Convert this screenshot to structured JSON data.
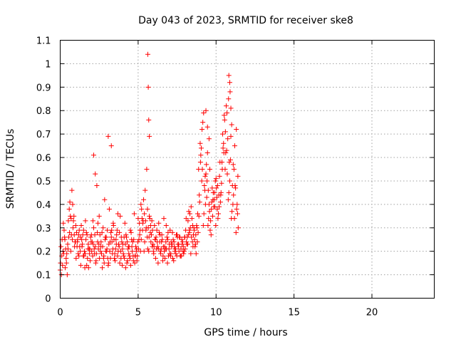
{
  "chart_data": {
    "type": "scatter",
    "title": "Day 043 of 2023, SRMTID for receiver ske8",
    "xlabel": "GPS time / hours",
    "ylabel": "SRMTID / TECUs",
    "xlim": [
      0,
      24
    ],
    "ylim": [
      0,
      1.1
    ],
    "xticks": [
      0,
      5,
      10,
      15,
      20
    ],
    "xtick_labels": [
      "0",
      "5",
      "10",
      "15",
      "20"
    ],
    "yticks": [
      0,
      0.1,
      0.2,
      0.3,
      0.4,
      0.5,
      0.6,
      0.7,
      0.8,
      0.9,
      1,
      1.1
    ],
    "ytick_labels": [
      "0",
      "0.1",
      "0.2",
      "0.3",
      "0.4",
      "0.5",
      "0.6",
      "0.7",
      "0.8",
      "0.9",
      "1",
      "1.1"
    ],
    "grid": true,
    "marker": "+",
    "color": "#ff0000",
    "series": [
      {
        "name": "SRMTID",
        "x": [
          0.0,
          0.1,
          0.2,
          0.3,
          0.4,
          0.5,
          0.6,
          0.7,
          0.8,
          0.9,
          1.0,
          1.1,
          1.2,
          1.3,
          1.4,
          1.5,
          1.6,
          1.7,
          1.8,
          1.9,
          2.0,
          2.1,
          2.2,
          2.3,
          2.4,
          2.5,
          2.6,
          2.7,
          2.8,
          2.9,
          3.0,
          3.1,
          3.2,
          3.3,
          3.4,
          3.5,
          3.6,
          3.7,
          3.8,
          3.9,
          4.0,
          4.1,
          4.2,
          4.3,
          4.4,
          4.5,
          4.6,
          4.7,
          4.8,
          4.9,
          5.0,
          5.1,
          5.2,
          5.3,
          5.4,
          5.5,
          5.6,
          5.7,
          5.8,
          5.9,
          6.0,
          6.1,
          6.2,
          6.3,
          6.4,
          6.5,
          6.6,
          6.7,
          6.8,
          6.9,
          7.0,
          7.1,
          7.2,
          7.3,
          7.4,
          7.5,
          7.6,
          7.7,
          7.8,
          7.9,
          8.0,
          8.1,
          8.2,
          8.3,
          8.4,
          8.5,
          8.6,
          8.7,
          8.8,
          8.9,
          9.0,
          9.1,
          9.2,
          9.3,
          9.4,
          9.5,
          9.6,
          9.7,
          9.8,
          9.9,
          10.0,
          10.1,
          10.2,
          10.3,
          10.4,
          10.5,
          10.6,
          10.7,
          10.8,
          10.9,
          11.0,
          11.1,
          11.2,
          11.3,
          11.4,
          0.05,
          0.15,
          0.25,
          0.35,
          0.45,
          0.55,
          0.65,
          0.75,
          0.85,
          0.95,
          1.05,
          1.15,
          1.25,
          1.35,
          1.45,
          1.55,
          1.65,
          1.75,
          1.85,
          1.95,
          2.05,
          2.15,
          2.25,
          2.35,
          2.45,
          2.55,
          2.65,
          2.75,
          2.85,
          2.95,
          3.05,
          3.15,
          3.25,
          3.35,
          3.45,
          3.55,
          3.65,
          3.75,
          3.85,
          3.95,
          4.05,
          4.15,
          4.25,
          4.35,
          4.45,
          4.55,
          4.65,
          4.75,
          4.85,
          4.95,
          5.05,
          5.15,
          5.25,
          5.35,
          5.45,
          5.55,
          5.65,
          5.75,
          5.85,
          5.95,
          6.05,
          6.15,
          6.25,
          6.35,
          6.45,
          6.55,
          6.65,
          6.75,
          6.85,
          6.95,
          7.05,
          7.15,
          7.25,
          7.35,
          7.45,
          7.55,
          7.65,
          7.75,
          7.85,
          7.95,
          8.05,
          8.15,
          8.25,
          8.35,
          8.45,
          8.55,
          8.65,
          8.75,
          8.85,
          8.95,
          9.05,
          9.15,
          9.25,
          9.35,
          9.45,
          9.55,
          9.65,
          9.75,
          9.85,
          9.95,
          10.05,
          10.15,
          10.25,
          10.35,
          10.45,
          10.55,
          10.65,
          10.75,
          10.85,
          10.95,
          11.05,
          11.15,
          11.25,
          11.35,
          0.02,
          0.12,
          0.22,
          0.32,
          0.42,
          0.52,
          0.62,
          0.72,
          0.82,
          0.92,
          1.02,
          1.12,
          1.22,
          1.32,
          1.42,
          1.52,
          1.62,
          1.72,
          1.82,
          1.92,
          2.02,
          2.12,
          2.22,
          2.32,
          2.42,
          2.52,
          2.62,
          2.72,
          2.82,
          2.92,
          3.02,
          3.12,
          3.22,
          3.32,
          3.42,
          3.52,
          3.62,
          3.72,
          3.82,
          3.92,
          4.02,
          4.12,
          4.22,
          4.32,
          4.42,
          4.52,
          4.62,
          4.72,
          4.82,
          4.92,
          5.02,
          5.12,
          5.22,
          5.32,
          5.42,
          5.52,
          5.62,
          5.72,
          5.82,
          5.92,
          6.02,
          6.12,
          6.22,
          6.32,
          6.42,
          6.52,
          6.62,
          6.72,
          6.82,
          6.92,
          7.02,
          7.12,
          7.22,
          7.32,
          7.42,
          7.52,
          7.62,
          7.72,
          7.82,
          7.92,
          8.02,
          8.12,
          8.22,
          8.32,
          8.42,
          8.52,
          8.62,
          8.72,
          8.82,
          8.92,
          9.02,
          9.12,
          9.22,
          9.32,
          9.42,
          9.52,
          9.62,
          9.72,
          9.82,
          9.92,
          10.02,
          10.12,
          10.22,
          10.32,
          10.42,
          10.52,
          10.62,
          10.72,
          10.82,
          10.92,
          11.02,
          11.12,
          11.22,
          11.32,
          11.42,
          0.08,
          0.18,
          0.28,
          0.38,
          0.48,
          0.58,
          0.68,
          0.78,
          0.88,
          0.98,
          1.08,
          1.18,
          1.28,
          1.38,
          1.48,
          1.58,
          1.68,
          1.78,
          1.88,
          1.98,
          2.08,
          2.18,
          2.28,
          2.38,
          2.48,
          2.58,
          2.68,
          2.78,
          2.88,
          2.98,
          3.08,
          3.18,
          3.28,
          3.38,
          3.48,
          3.58,
          3.68,
          3.78,
          3.88,
          3.98,
          4.08,
          4.18,
          4.28,
          4.38,
          4.48,
          4.58,
          4.68,
          4.78,
          4.88,
          4.98,
          5.08,
          5.18,
          5.28,
          5.38,
          5.48,
          5.58,
          5.68,
          5.78,
          5.88,
          5.98,
          6.08,
          6.18,
          6.28,
          6.38,
          6.48,
          6.58,
          6.68,
          6.78,
          6.88,
          6.98,
          7.08,
          7.18,
          7.28,
          7.38,
          7.48,
          7.58,
          7.68,
          7.78,
          7.88,
          7.98,
          8.08,
          8.18,
          8.28,
          8.38,
          8.48,
          8.58,
          8.68,
          8.78,
          8.88,
          8.98,
          9.08,
          9.18,
          9.28,
          9.38,
          9.48,
          9.58,
          9.68,
          9.78,
          9.88,
          9.98,
          10.08,
          10.18,
          10.28,
          10.38,
          10.48,
          10.58,
          10.68,
          10.78,
          10.88,
          10.98,
          11.08,
          11.18,
          11.28,
          11.38,
          5.62,
          5.65,
          5.68,
          5.72,
          2.15,
          2.25,
          3.08,
          3.28,
          10.82,
          10.88,
          10.95,
          9.35,
          9.45,
          9.55
        ],
        "y": [
          0.12,
          0.18,
          0.32,
          0.25,
          0.15,
          0.21,
          0.28,
          0.34,
          0.4,
          0.27,
          0.31,
          0.24,
          0.18,
          0.26,
          0.22,
          0.29,
          0.19,
          0.14,
          0.23,
          0.21,
          0.27,
          0.33,
          0.19,
          0.16,
          0.24,
          0.35,
          0.22,
          0.13,
          0.18,
          0.26,
          0.21,
          0.15,
          0.24,
          0.29,
          0.32,
          0.19,
          0.23,
          0.36,
          0.28,
          0.17,
          0.21,
          0.26,
          0.13,
          0.24,
          0.19,
          0.29,
          0.22,
          0.16,
          0.18,
          0.21,
          0.34,
          0.27,
          0.25,
          0.32,
          0.36,
          0.29,
          0.38,
          0.26,
          0.31,
          0.22,
          0.19,
          0.25,
          0.29,
          0.21,
          0.27,
          0.24,
          0.18,
          0.22,
          0.31,
          0.25,
          0.23,
          0.19,
          0.28,
          0.24,
          0.21,
          0.27,
          0.23,
          0.18,
          0.25,
          0.22,
          0.26,
          0.24,
          0.33,
          0.28,
          0.39,
          0.31,
          0.29,
          0.27,
          0.24,
          0.35,
          0.58,
          0.72,
          0.79,
          0.52,
          0.43,
          0.46,
          0.55,
          0.38,
          0.42,
          0.45,
          0.51,
          0.48,
          0.39,
          0.44,
          0.55,
          0.62,
          0.71,
          0.79,
          0.85,
          0.88,
          0.74,
          0.57,
          0.65,
          0.72,
          0.52,
          0.22,
          0.14,
          0.29,
          0.21,
          0.1,
          0.26,
          0.35,
          0.46,
          0.33,
          0.24,
          0.28,
          0.19,
          0.22,
          0.31,
          0.27,
          0.2,
          0.25,
          0.17,
          0.21,
          0.26,
          0.24,
          0.3,
          0.22,
          0.48,
          0.21,
          0.27,
          0.19,
          0.3,
          0.42,
          0.26,
          0.17,
          0.38,
          0.28,
          0.19,
          0.25,
          0.21,
          0.29,
          0.23,
          0.35,
          0.24,
          0.19,
          0.32,
          0.26,
          0.21,
          0.18,
          0.28,
          0.24,
          0.36,
          0.22,
          0.18,
          0.25,
          0.2,
          0.34,
          0.42,
          0.46,
          0.55,
          0.3,
          0.34,
          0.27,
          0.23,
          0.31,
          0.26,
          0.22,
          0.28,
          0.19,
          0.25,
          0.34,
          0.21,
          0.26,
          0.18,
          0.29,
          0.22,
          0.25,
          0.2,
          0.27,
          0.23,
          0.26,
          0.21,
          0.24,
          0.2,
          0.29,
          0.26,
          0.37,
          0.3,
          0.34,
          0.27,
          0.22,
          0.31,
          0.28,
          0.41,
          0.64,
          0.75,
          0.48,
          0.53,
          0.62,
          0.4,
          0.33,
          0.47,
          0.39,
          0.5,
          0.43,
          0.36,
          0.58,
          0.49,
          0.64,
          0.76,
          0.82,
          0.68,
          0.58,
          0.69,
          0.48,
          0.55,
          0.47,
          0.4,
          0.15,
          0.25,
          0.19,
          0.13,
          0.19,
          0.33,
          0.41,
          0.27,
          0.3,
          0.22,
          0.17,
          0.25,
          0.29,
          0.14,
          0.23,
          0.18,
          0.33,
          0.27,
          0.13,
          0.16,
          0.2,
          0.23,
          0.27,
          0.19,
          0.32,
          0.17,
          0.24,
          0.22,
          0.15,
          0.2,
          0.29,
          0.23,
          0.17,
          0.24,
          0.31,
          0.16,
          0.27,
          0.2,
          0.15,
          0.26,
          0.23,
          0.17,
          0.27,
          0.16,
          0.22,
          0.14,
          0.2,
          0.25,
          0.18,
          0.16,
          0.21,
          0.29,
          0.38,
          0.33,
          0.24,
          0.3,
          0.21,
          0.35,
          0.24,
          0.29,
          0.22,
          0.17,
          0.24,
          0.32,
          0.2,
          0.27,
          0.22,
          0.17,
          0.21,
          0.28,
          0.19,
          0.24,
          0.17,
          0.22,
          0.19,
          0.26,
          0.2,
          0.18,
          0.23,
          0.19,
          0.21,
          0.23,
          0.27,
          0.36,
          0.26,
          0.22,
          0.25,
          0.19,
          0.36,
          0.44,
          0.61,
          0.55,
          0.36,
          0.4,
          0.5,
          0.34,
          0.29,
          0.41,
          0.45,
          0.39,
          0.47,
          0.34,
          0.52,
          0.45,
          0.7,
          0.78,
          0.62,
          0.53,
          0.45,
          0.59,
          0.37,
          0.44,
          0.48,
          0.38,
          0.3,
          0.1,
          0.2,
          0.26,
          0.17,
          0.23,
          0.38,
          0.2,
          0.25,
          0.35,
          0.24,
          0.22,
          0.27,
          0.2,
          0.25,
          0.18,
          0.13,
          0.28,
          0.21,
          0.19,
          0.24,
          0.18,
          0.21,
          0.15,
          0.28,
          0.23,
          0.2,
          0.28,
          0.17,
          0.25,
          0.2,
          0.14,
          0.2,
          0.26,
          0.21,
          0.17,
          0.25,
          0.18,
          0.22,
          0.2,
          0.14,
          0.18,
          0.23,
          0.15,
          0.22,
          0.17,
          0.25,
          0.18,
          0.15,
          0.2,
          0.24,
          0.32,
          0.4,
          0.29,
          0.2,
          0.33,
          0.26,
          0.2,
          0.28,
          0.33,
          0.2,
          0.25,
          0.21,
          0.15,
          0.24,
          0.21,
          0.16,
          0.2,
          0.24,
          0.15,
          0.21,
          0.18,
          0.23,
          0.16,
          0.21,
          0.18,
          0.22,
          0.26,
          0.18,
          0.2,
          0.26,
          0.34,
          0.23,
          0.29,
          0.19,
          0.24,
          0.3,
          0.23,
          0.3,
          0.55,
          0.66,
          0.5,
          0.31,
          0.46,
          0.57,
          0.31,
          0.37,
          0.27,
          0.35,
          0.42,
          0.31,
          0.38,
          0.44,
          0.41,
          0.58,
          0.66,
          0.55,
          0.63,
          0.42,
          0.5,
          0.34,
          0.4,
          0.34,
          0.28,
          0.36,
          1.04,
          0.9,
          0.76,
          0.69,
          0.61,
          0.53,
          0.69,
          0.65,
          0.95,
          0.92,
          0.81,
          0.8,
          0.73,
          0.68
        ]
      }
    ]
  }
}
